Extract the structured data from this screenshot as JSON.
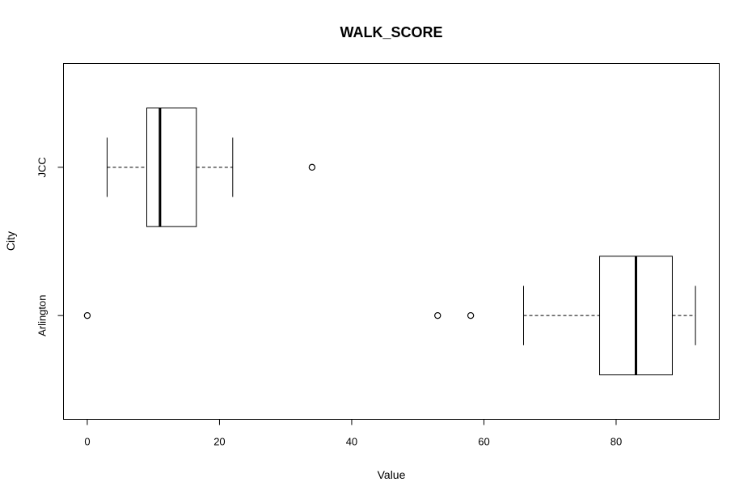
{
  "chart_data": {
    "type": "boxplot",
    "orientation": "horizontal",
    "title": "WALK_SCORE",
    "xlabel": "Value",
    "ylabel": "City",
    "xlim": [
      -3.6,
      95.6
    ],
    "x_ticks": [
      0,
      20,
      40,
      60,
      80
    ],
    "categories": [
      "Arlington",
      "JCC"
    ],
    "boxes": [
      {
        "category": "Arlington",
        "whisker_low": 66,
        "q1": 77.5,
        "median": 83,
        "q3": 88.5,
        "whisker_high": 92,
        "outliers": [
          0,
          53,
          58
        ]
      },
      {
        "category": "JCC",
        "whisker_low": 3,
        "q1": 9,
        "median": 11,
        "q3": 16.5,
        "whisker_high": 22,
        "outliers": [
          34
        ]
      }
    ],
    "grid": false,
    "legend": "none"
  }
}
